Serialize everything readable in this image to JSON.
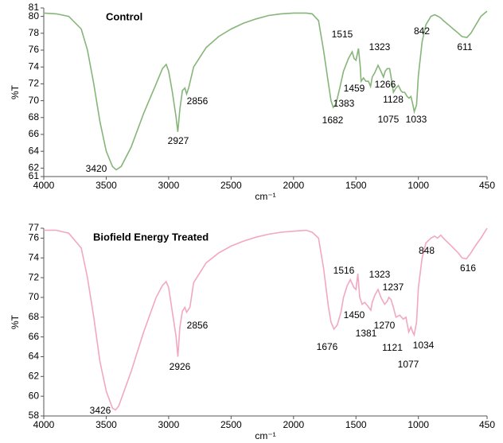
{
  "chart_data": [
    {
      "type": "line",
      "title": "Control",
      "x_label": "cm⁻¹",
      "y_label": "%T",
      "xlim": [
        4000,
        450
      ],
      "xticks": [
        4000,
        3500,
        3000,
        2500,
        2000,
        1500,
        1000,
        450
      ],
      "ylim": [
        61,
        81
      ],
      "yticks": [
        61,
        62,
        64,
        66,
        68,
        70,
        72,
        74,
        76,
        78,
        80,
        81
      ],
      "grid": false,
      "x": [
        4000,
        3900,
        3800,
        3700,
        3650,
        3600,
        3550,
        3500,
        3450,
        3420,
        3380,
        3300,
        3200,
        3100,
        3050,
        3020,
        3000,
        2970,
        2940,
        2927,
        2910,
        2890,
        2870,
        2856,
        2840,
        2800,
        2700,
        2600,
        2500,
        2400,
        2300,
        2200,
        2100,
        2000,
        1900,
        1850,
        1800,
        1760,
        1720,
        1700,
        1682,
        1660,
        1630,
        1600,
        1560,
        1530,
        1515,
        1500,
        1480,
        1465,
        1459,
        1440,
        1420,
        1400,
        1383,
        1370,
        1350,
        1323,
        1300,
        1280,
        1266,
        1250,
        1230,
        1210,
        1200,
        1180,
        1160,
        1140,
        1128,
        1110,
        1090,
        1075,
        1060,
        1045,
        1033,
        1015,
        1000,
        970,
        940,
        900,
        870,
        842,
        820,
        800,
        760,
        720,
        680,
        650,
        611,
        580,
        540,
        500,
        460,
        450
      ],
      "series": [
        {
          "name": "Control",
          "color": "#86b57a",
          "values": [
            80.4,
            80.3,
            80.0,
            78.5,
            76,
            72,
            67.5,
            64,
            62.2,
            61.8,
            62.2,
            64.5,
            68.5,
            72,
            73.8,
            74.3,
            73.5,
            71,
            68,
            66.3,
            69,
            71.2,
            71.5,
            70.8,
            71.5,
            74,
            76.3,
            77.6,
            78.5,
            79.2,
            79.7,
            80.1,
            80.3,
            80.4,
            80.4,
            80.3,
            79.5,
            76,
            72,
            70,
            69.2,
            69.6,
            71.5,
            73.5,
            75,
            75.8,
            75,
            74.8,
            76.2,
            74,
            72.3,
            72.7,
            72.3,
            72.3,
            71.7,
            72.8,
            73.3,
            74.2,
            73.5,
            72.8,
            73.5,
            73.8,
            73.8,
            72,
            71,
            71.5,
            71.8,
            71.2,
            71,
            71,
            70.5,
            70.3,
            70.5,
            69.6,
            68.7,
            69.5,
            73,
            77,
            79,
            80,
            80.2,
            80,
            79.8,
            79.5,
            79,
            78.5,
            78,
            77.6,
            77.5,
            78,
            79,
            80,
            80.5,
            80.6
          ]
        }
      ],
      "peak_labels": [
        3420,
        2927,
        2856,
        1682,
        1515,
        1459,
        1383,
        1323,
        1266,
        1128,
        1075,
        1033,
        842,
        611
      ]
    },
    {
      "type": "line",
      "title": "Biofield Energy Treated",
      "x_label": "cm⁻¹",
      "y_label": "%T",
      "xlim": [
        4000,
        450
      ],
      "xticks": [
        4000,
        3500,
        3000,
        2500,
        2000,
        1500,
        1000,
        450
      ],
      "ylim": [
        58,
        77
      ],
      "yticks": [
        58,
        60,
        62,
        64,
        66,
        68,
        70,
        72,
        74,
        76,
        77
      ],
      "grid": false,
      "x": [
        4000,
        3900,
        3800,
        3700,
        3650,
        3600,
        3550,
        3500,
        3450,
        3426,
        3400,
        3300,
        3200,
        3100,
        3050,
        3020,
        3000,
        2970,
        2940,
        2926,
        2910,
        2890,
        2870,
        2856,
        2830,
        2800,
        2700,
        2600,
        2500,
        2400,
        2300,
        2200,
        2100,
        2000,
        1900,
        1850,
        1800,
        1760,
        1720,
        1700,
        1676,
        1650,
        1620,
        1600,
        1570,
        1545,
        1516,
        1500,
        1485,
        1470,
        1450,
        1430,
        1410,
        1381,
        1370,
        1350,
        1323,
        1300,
        1270,
        1250,
        1237,
        1220,
        1200,
        1180,
        1150,
        1121,
        1100,
        1077,
        1060,
        1045,
        1034,
        1015,
        1000,
        970,
        940,
        900,
        870,
        848,
        820,
        800,
        760,
        720,
        680,
        650,
        616,
        580,
        540,
        500,
        460,
        450
      ],
      "series": [
        {
          "name": "Biofield Energy Treated",
          "color": "#f2a7c3",
          "values": [
            76.8,
            76.8,
            76.5,
            75,
            72,
            68,
            63.5,
            60.5,
            58.8,
            58.6,
            59,
            62.5,
            66.5,
            70,
            71.2,
            71.6,
            71,
            68.5,
            66,
            64,
            67,
            68.6,
            69,
            68.5,
            69,
            71.5,
            73.5,
            74.5,
            75.2,
            75.7,
            76.1,
            76.4,
            76.6,
            76.7,
            76.8,
            76.6,
            76,
            73,
            69,
            67.5,
            66.8,
            67.2,
            68.5,
            70,
            71.2,
            71.8,
            71,
            70.8,
            72.4,
            70,
            69.3,
            69.5,
            69.2,
            68.7,
            69.5,
            70.2,
            70.8,
            70,
            69.3,
            69.6,
            70,
            69.8,
            69,
            68,
            68.2,
            67.8,
            68,
            66.5,
            67,
            66.5,
            66.2,
            67.5,
            71,
            74,
            75.5,
            76,
            76.2,
            76,
            76.3,
            76,
            75.5,
            75,
            74.5,
            74,
            73.9,
            74.5,
            75.3,
            76,
            76.8,
            77
          ]
        }
      ],
      "peak_labels": [
        3426,
        2926,
        2856,
        1676,
        1516,
        1450,
        1381,
        1323,
        1237,
        1270,
        1121,
        1077,
        1034,
        848,
        616
      ]
    }
  ]
}
